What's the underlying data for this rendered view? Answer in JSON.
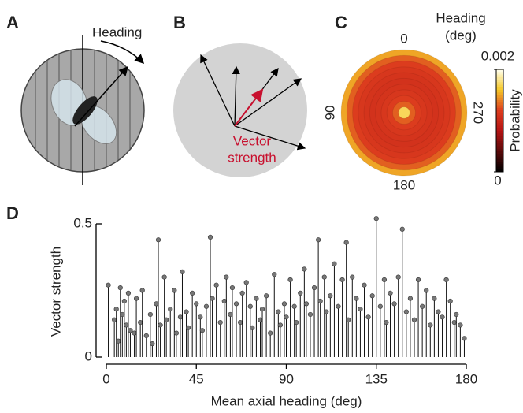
{
  "panels": {
    "A": {
      "label": "A",
      "annotation": "Heading"
    },
    "B": {
      "label": "B",
      "annotation_lines": [
        "Vector",
        "strength"
      ]
    },
    "C": {
      "label": "C"
    },
    "D": {
      "label": "D"
    }
  },
  "chart_data": [
    {
      "type": "polar-heatmap",
      "title_lines": [
        "Heading",
        "(deg)"
      ],
      "theta_ticks": [
        0,
        90,
        180,
        270
      ],
      "ring_values": [
        0.0017,
        0.0013,
        0.0012,
        0.00115,
        0.00112,
        0.0011,
        0.00112,
        0.00115,
        0.0012,
        0.0013,
        0.0015
      ],
      "colorbar_label": "Probability",
      "clim": [
        0,
        0.002
      ],
      "cticks": [
        0,
        0.002
      ]
    },
    {
      "type": "stem",
      "xlabel": "Mean axial heading (deg)",
      "ylabel": "Vector strength",
      "xlim": [
        0,
        180
      ],
      "xticks": [
        0,
        45,
        90,
        135,
        180
      ],
      "ylim": [
        0,
        0.5
      ],
      "yticks": [
        0,
        0.5
      ],
      "color": "#777777",
      "x": [
        1,
        4,
        5,
        6,
        7,
        8,
        9,
        10,
        11,
        12,
        14,
        15,
        17,
        18,
        20,
        22,
        23,
        25,
        26,
        27,
        29,
        30,
        32,
        34,
        35,
        37,
        38,
        40,
        41,
        43,
        45,
        47,
        48,
        50,
        52,
        53,
        55,
        57,
        59,
        60,
        62,
        63,
        65,
        67,
        68,
        70,
        72,
        73,
        75,
        77,
        78,
        80,
        82,
        84,
        86,
        87,
        89,
        90,
        92,
        94,
        95,
        97,
        99,
        100,
        102,
        104,
        106,
        107,
        109,
        110,
        112,
        114,
        116,
        118,
        120,
        121,
        123,
        125,
        127,
        129,
        131,
        133,
        135,
        137,
        139,
        140,
        142,
        144,
        146,
        148,
        150,
        152,
        154,
        156,
        158,
        160,
        162,
        164,
        166,
        168,
        170,
        172,
        174,
        175,
        177,
        179
      ],
      "values": [
        0.27,
        0.14,
        0.18,
        0.06,
        0.26,
        0.16,
        0.21,
        0.12,
        0.24,
        0.1,
        0.09,
        0.22,
        0.13,
        0.25,
        0.08,
        0.16,
        0.05,
        0.2,
        0.44,
        0.12,
        0.3,
        0.14,
        0.18,
        0.25,
        0.09,
        0.15,
        0.32,
        0.17,
        0.11,
        0.24,
        0.2,
        0.15,
        0.1,
        0.19,
        0.45,
        0.22,
        0.27,
        0.13,
        0.21,
        0.3,
        0.16,
        0.26,
        0.2,
        0.13,
        0.24,
        0.28,
        0.19,
        0.11,
        0.22,
        0.14,
        0.18,
        0.23,
        0.09,
        0.31,
        0.17,
        0.12,
        0.2,
        0.15,
        0.29,
        0.19,
        0.13,
        0.24,
        0.33,
        0.2,
        0.16,
        0.26,
        0.44,
        0.21,
        0.3,
        0.17,
        0.23,
        0.35,
        0.19,
        0.29,
        0.43,
        0.14,
        0.3,
        0.22,
        0.18,
        0.27,
        0.15,
        0.23,
        0.52,
        0.19,
        0.29,
        0.13,
        0.24,
        0.2,
        0.3,
        0.48,
        0.17,
        0.22,
        0.14,
        0.29,
        0.19,
        0.25,
        0.12,
        0.22,
        0.17,
        0.15,
        0.29,
        0.21,
        0.13,
        0.16,
        0.12,
        0.07
      ]
    }
  ]
}
